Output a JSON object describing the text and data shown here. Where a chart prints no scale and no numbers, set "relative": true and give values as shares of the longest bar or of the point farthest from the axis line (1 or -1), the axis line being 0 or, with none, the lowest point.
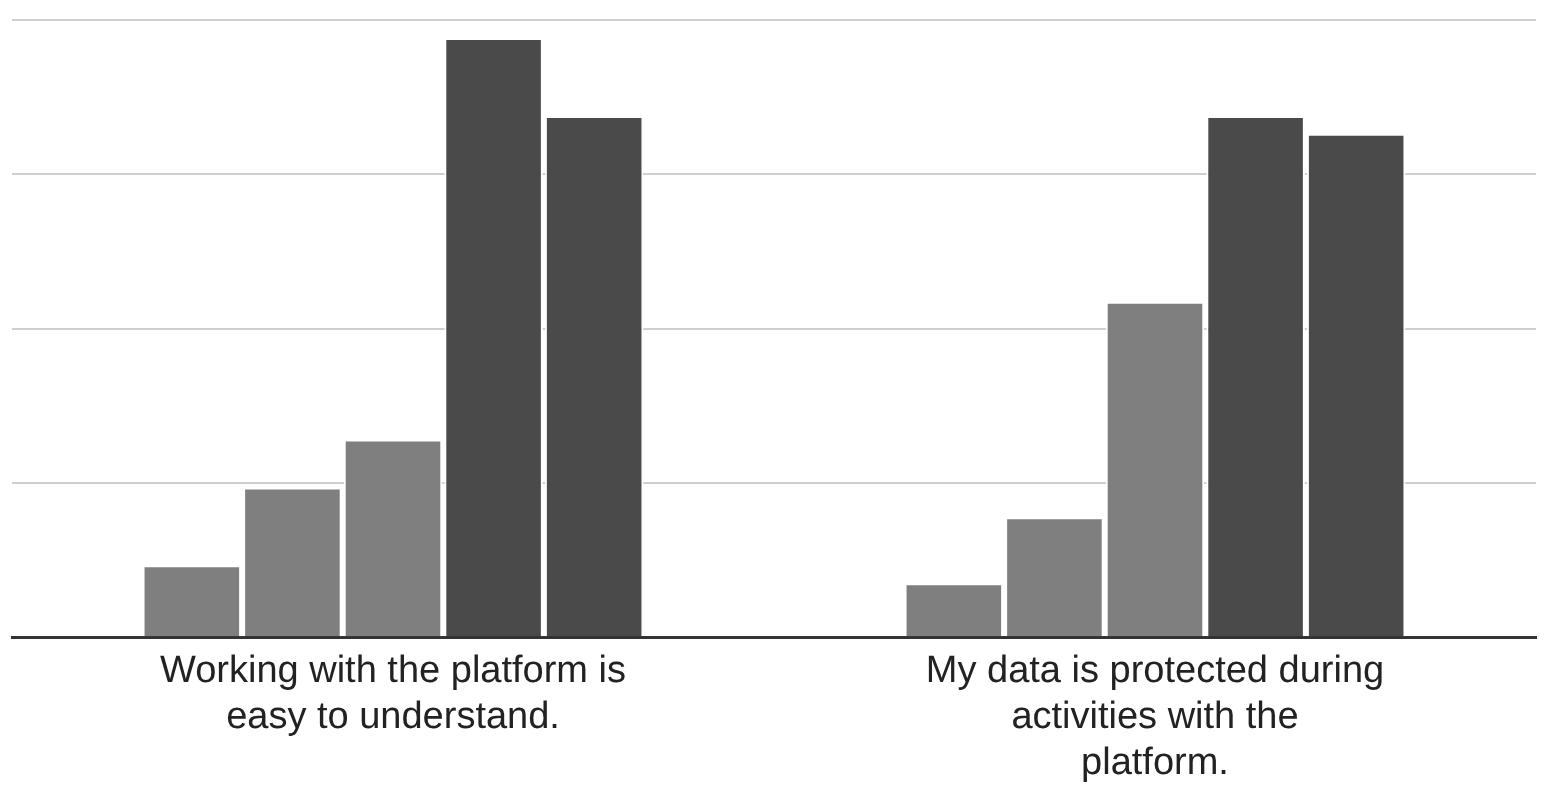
{
  "chart_data": {
    "type": "bar",
    "relative": true,
    "grid": "y",
    "legend": false,
    "categories": [
      "Working with the platform is easy to understand.",
      "My data is protected during activities with the platform."
    ],
    "series": [
      {
        "color": "#7f7f7f",
        "values": [
          0.12,
          0.09
        ]
      },
      {
        "color": "#7f7f7f",
        "values": [
          0.25,
          0.2
        ]
      },
      {
        "color": "#7f7f7f",
        "values": [
          0.33,
          0.56
        ]
      },
      {
        "color": "#4a4a4a",
        "values": [
          1,
          0.87
        ]
      },
      {
        "color": "#4a4a4a",
        "values": [
          0.87,
          0.84
        ]
      }
    ]
  }
}
